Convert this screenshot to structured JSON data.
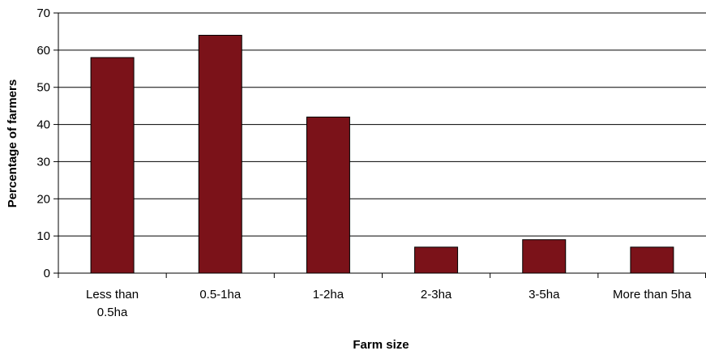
{
  "chart_data": {
    "type": "bar",
    "categories": [
      "Less than 0.5ha",
      "0.5-1ha",
      "1-2ha",
      "2-3ha",
      "3-5ha",
      "More than 5ha"
    ],
    "category_label_lines": [
      [
        "Less than",
        "0.5ha"
      ],
      [
        "0.5-1ha"
      ],
      [
        "1-2ha"
      ],
      [
        "2-3ha"
      ],
      [
        "3-5ha"
      ],
      [
        "More than 5ha"
      ]
    ],
    "values": [
      58,
      64,
      42,
      7,
      9,
      7
    ],
    "title": "",
    "xlabel": "Farm size",
    "ylabel": "Percentage of farmers",
    "ylim": [
      0,
      70
    ],
    "yticks": [
      0,
      10,
      20,
      30,
      40,
      50,
      60,
      70
    ],
    "grid": true,
    "legend": "none",
    "colors": {
      "bar": "#7b1219",
      "bar_edge": "#000000",
      "grid": "#000000",
      "axis": "#000000"
    }
  }
}
